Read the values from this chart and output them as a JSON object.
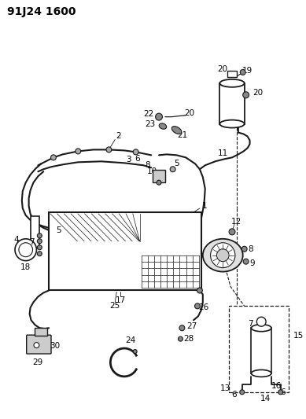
{
  "title": "91J24 1600",
  "bg_color": "#ffffff",
  "line_color": "#1a1a1a",
  "title_fontsize": 11,
  "label_fontsize": 7.5,
  "fig_width": 3.89,
  "fig_height": 5.33,
  "dpi": 100
}
